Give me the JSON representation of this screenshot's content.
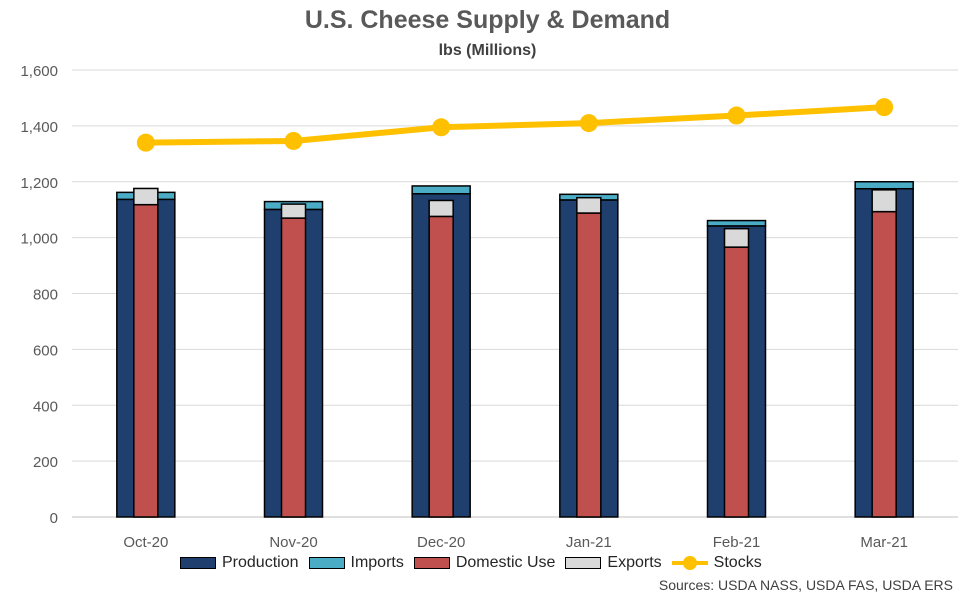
{
  "chart_data": {
    "type": "bar",
    "title": "U.S. Cheese Supply & Demand",
    "subtitle": "lbs (Millions)",
    "categories": [
      "Oct-20",
      "Nov-20",
      "Dec-20",
      "Jan-21",
      "Feb-21",
      "Mar-21"
    ],
    "ylim": [
      0,
      1600
    ],
    "yticks": [
      "0",
      "200",
      "400",
      "600",
      "800",
      "1,000",
      "1,200",
      "1,400",
      "1,600"
    ],
    "grid": true,
    "legend_position": "bottom",
    "series": [
      {
        "name": "Production",
        "type": "stacked-bar",
        "color": "#1F3F6E",
        "values": [
          1137,
          1101,
          1157,
          1135,
          1042,
          1175
        ]
      },
      {
        "name": "Imports",
        "type": "stacked-bar",
        "color": "#4BACC6",
        "values": [
          25,
          28,
          28,
          20,
          19,
          25
        ]
      },
      {
        "name": "Domestic Use",
        "type": "stacked-bar",
        "color": "#C0504D",
        "values": [
          1118,
          1070,
          1076,
          1088,
          966,
          1093
        ]
      },
      {
        "name": "Exports",
        "type": "stacked-bar",
        "color": "#D9D9D9",
        "values": [
          58,
          50,
          57,
          55,
          66,
          78
        ]
      },
      {
        "name": "Stocks",
        "type": "line",
        "color": "#FFC000",
        "values": [
          1340,
          1346,
          1395,
          1410,
          1437,
          1467
        ]
      }
    ],
    "source": "Sources: USDA NASS, USDA FAS, USDA ERS"
  }
}
